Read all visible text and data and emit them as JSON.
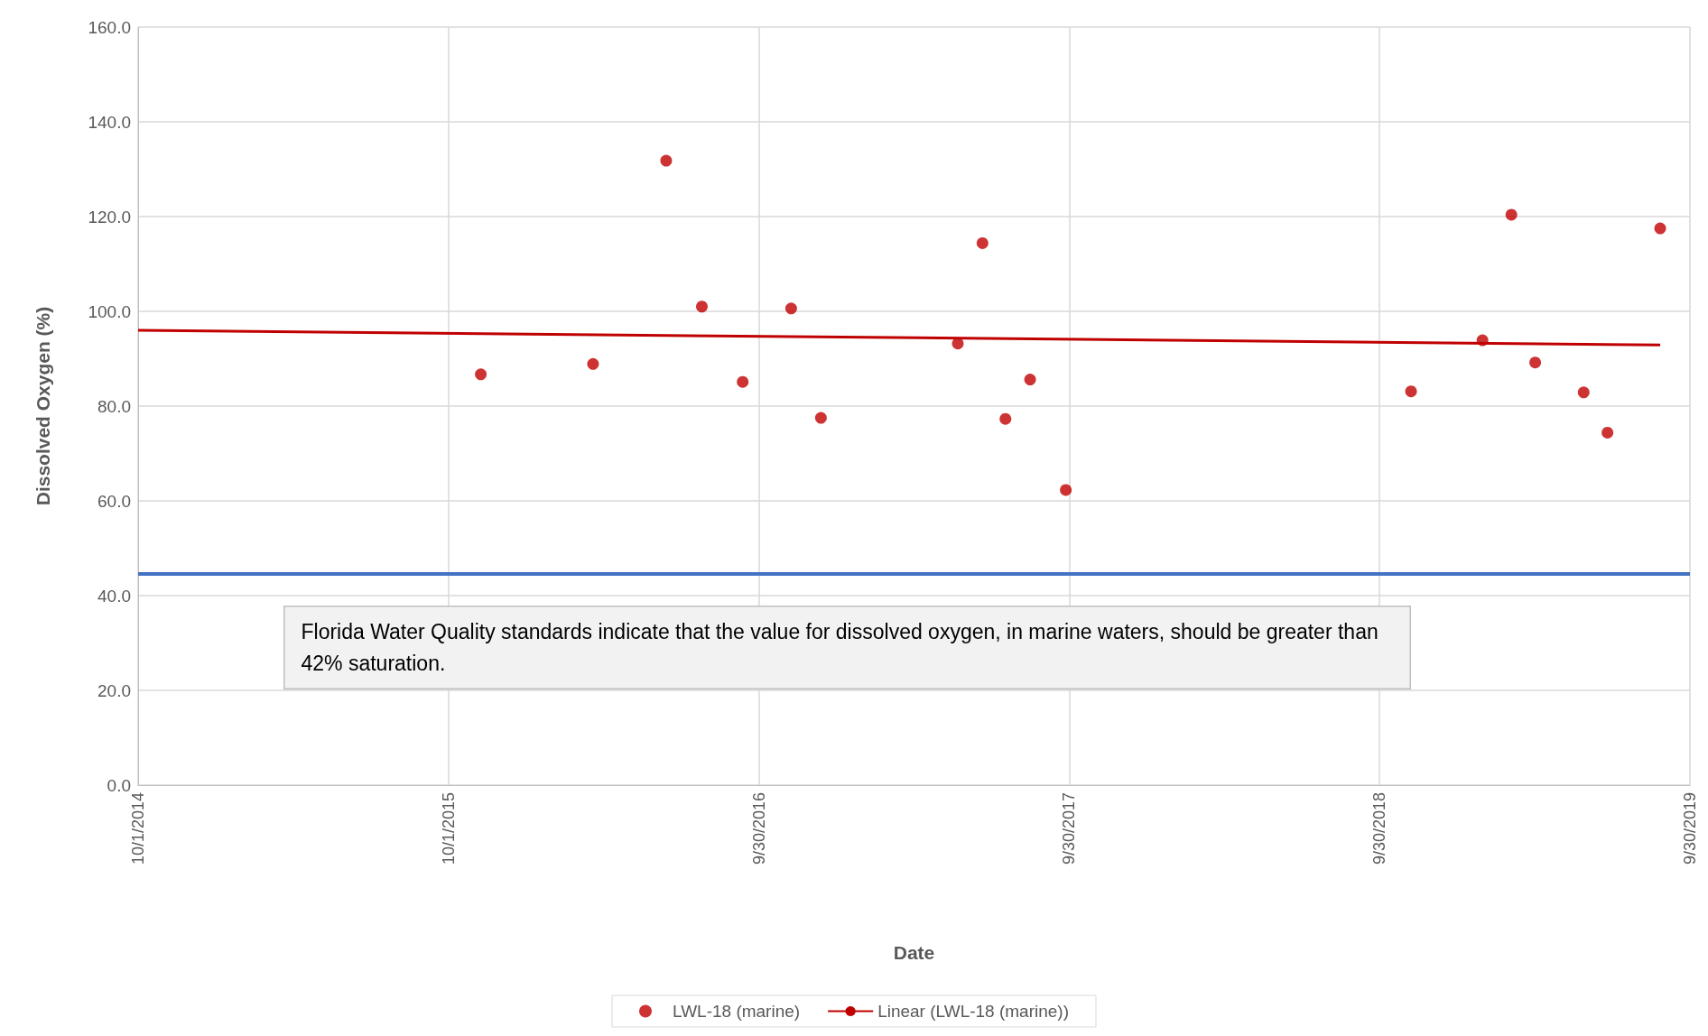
{
  "chart_data": {
    "type": "scatter",
    "xlabel": "Date",
    "ylabel": "Dissolved Oxygen (%)",
    "xlim": [
      "2014-10-01",
      "2019-09-30"
    ],
    "xticks": [
      {
        "value": "2014-10-01",
        "label": "10/1/2014"
      },
      {
        "value": "2015-10-01",
        "label": "10/1/2015"
      },
      {
        "value": "2016-09-30",
        "label": "9/30/2016"
      },
      {
        "value": "2017-09-30",
        "label": "9/30/2017"
      },
      {
        "value": "2018-09-30",
        "label": "9/30/2018"
      },
      {
        "value": "2019-09-30",
        "label": "9/30/2019"
      }
    ],
    "ylim": [
      0,
      160
    ],
    "yticks": [
      {
        "value": 0,
        "label": "0.0"
      },
      {
        "value": 20,
        "label": "20.0"
      },
      {
        "value": 40,
        "label": "40.0"
      },
      {
        "value": 60,
        "label": "60.0"
      },
      {
        "value": 80,
        "label": "80.0"
      },
      {
        "value": 100,
        "label": "100.0"
      },
      {
        "value": 120,
        "label": "120.0"
      },
      {
        "value": 140,
        "label": "140.0"
      },
      {
        "value": 160,
        "label": "160.0"
      }
    ],
    "grid": true,
    "legend": "bottom",
    "series": [
      {
        "name": "LWL-18 (marine)",
        "marker": "circle",
        "color": "#c00000",
        "x": [
          "2015-11-08",
          "2016-03-19",
          "2016-06-13",
          "2016-07-25",
          "2016-09-11",
          "2016-11-07",
          "2016-12-12",
          "2017-05-22",
          "2017-06-20",
          "2017-07-17",
          "2017-08-15",
          "2017-09-26",
          "2018-11-06",
          "2019-01-29",
          "2019-03-04",
          "2019-04-01",
          "2019-05-28",
          "2019-06-25",
          "2019-08-26"
        ],
        "values": [
          86.7,
          88.9,
          131.8,
          101.0,
          85.1,
          100.6,
          77.5,
          93.2,
          114.4,
          77.3,
          85.6,
          62.3,
          83.1,
          93.9,
          120.4,
          89.2,
          82.9,
          74.4,
          117.5
        ]
      },
      {
        "name": "Linear (LWL-18 (marine))",
        "type": "line",
        "marker": "none",
        "color": "#c00000",
        "x": [
          "2014-10-01",
          "2019-08-26"
        ],
        "values": [
          96.0,
          92.9
        ]
      }
    ],
    "ref_lines": [
      {
        "axis": "y",
        "value": 44.6,
        "color": "#4472c4"
      }
    ],
    "annotations": [
      "Florida Water Quality standards indicate that the value for dissolved oxygen, in marine waters, should be greater than 42% saturation."
    ]
  }
}
